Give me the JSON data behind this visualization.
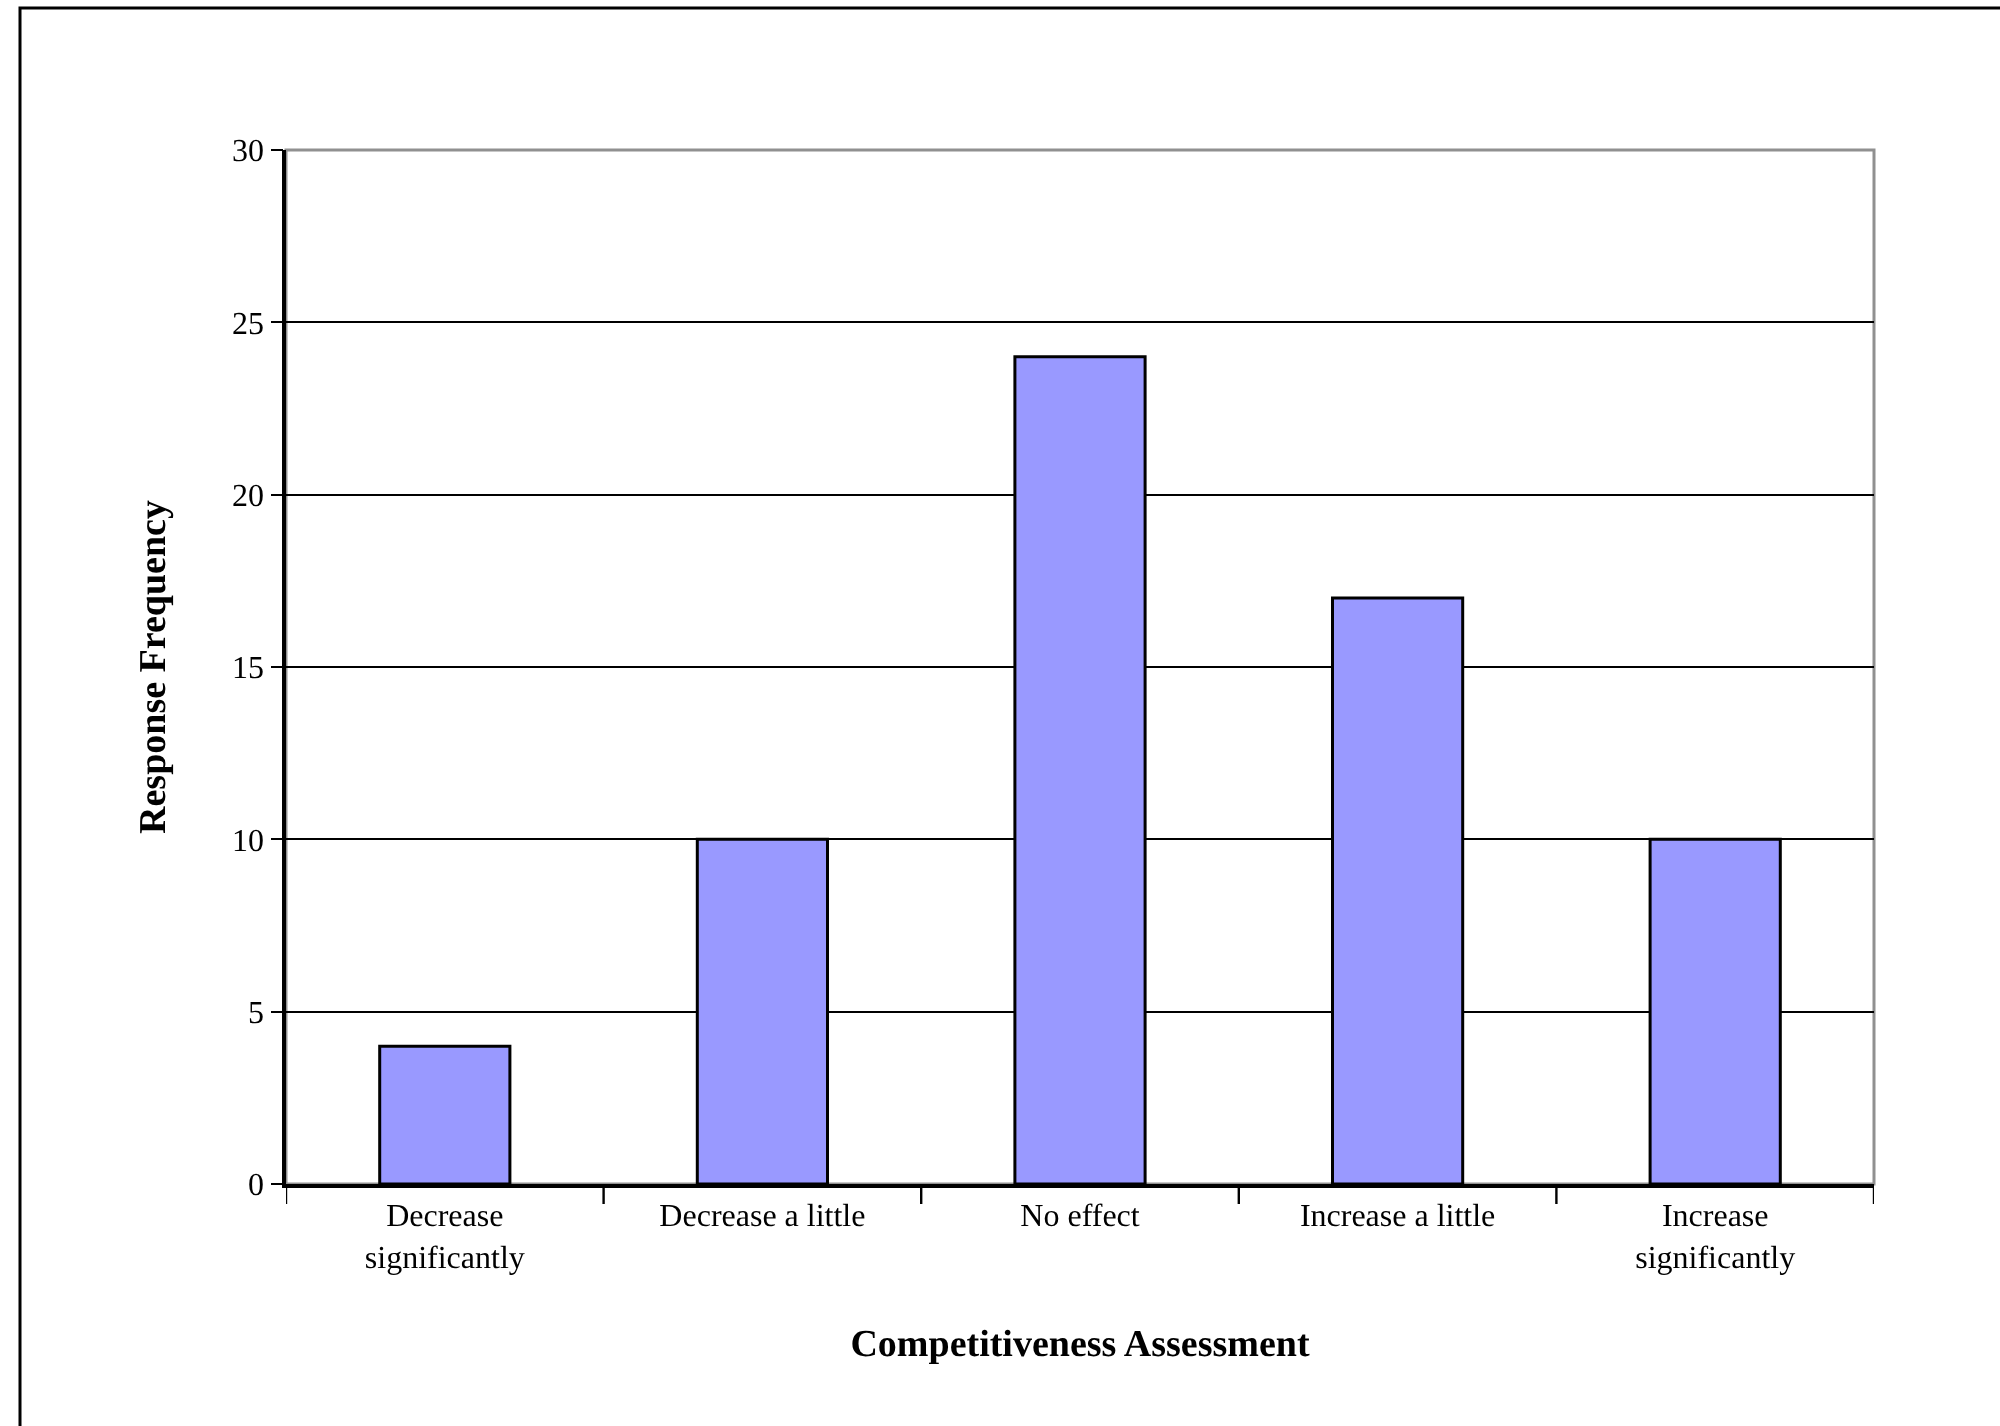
{
  "chart_data": {
    "type": "bar",
    "xlabel": "Competitiveness Assessment",
    "ylabel": "Response Frequency",
    "categories": [
      "Decrease significantly",
      "Decrease a little",
      "No effect",
      "Increase a little",
      "Increase significantly"
    ],
    "values": [
      4,
      10,
      24,
      17,
      10
    ],
    "color": "#9999ff",
    "ylim": [
      0,
      30
    ],
    "yticks": [
      0,
      5,
      10,
      15,
      20,
      25,
      30
    ],
    "grid": "y"
  }
}
